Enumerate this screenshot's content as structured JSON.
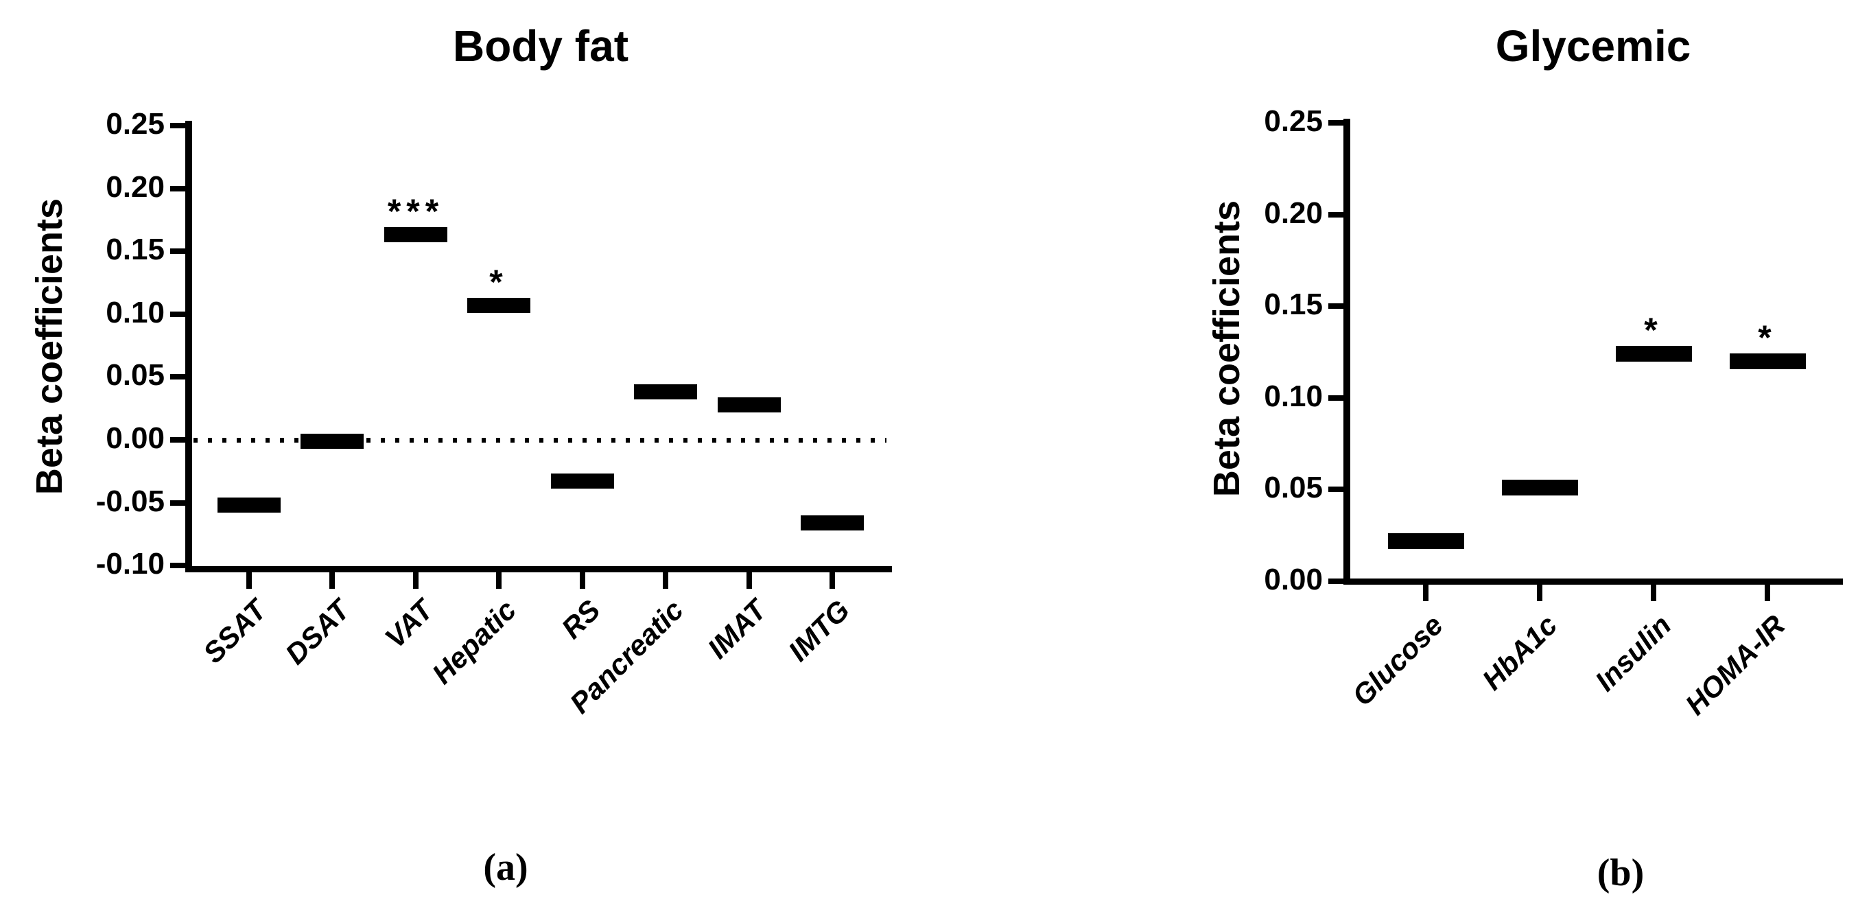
{
  "colors": {
    "foreground": "#000000",
    "background": "#ffffff"
  },
  "chart_data": [
    {
      "id": "a",
      "type": "bar",
      "title": "Body fat",
      "ylabel": "Beta coefficients",
      "xlabel": "",
      "caption": "(a)",
      "categories": [
        "SSAT",
        "DSAT",
        "VAT",
        "Hepatic",
        "RS",
        "Pancreatic",
        "IMAT",
        "IMTG"
      ],
      "values": [
        -0.052,
        -0.001,
        0.163,
        0.107,
        -0.033,
        0.038,
        0.028,
        -0.066
      ],
      "significance": [
        "",
        "",
        "***",
        "*",
        "",
        "",
        "",
        ""
      ],
      "ylim": [
        -0.1,
        0.25
      ],
      "ytick_step": 0.05,
      "ytick_labels": [
        "0.25",
        "0.20",
        "0.15",
        "0.10",
        "0.05",
        "0.00",
        "-0.05",
        "-0.10"
      ],
      "zero_line": true,
      "zero_line_style": "dotted",
      "marker_style": "horizontal-bar-dash",
      "layout_hints": {
        "legend": "none",
        "grid": false,
        "x_labels_rotated_45": true
      }
    },
    {
      "id": "b",
      "type": "bar",
      "title": "Glycemic",
      "ylabel": "Beta coefficients",
      "xlabel": "",
      "caption": "(b)",
      "categories": [
        "Glucose",
        "HbA1c",
        "Insulin",
        "HOMA-IR"
      ],
      "values": [
        0.022,
        0.051,
        0.124,
        0.12
      ],
      "significance": [
        "",
        "",
        "*",
        "*"
      ],
      "ylim": [
        0.0,
        0.25
      ],
      "ytick_step": 0.05,
      "ytick_labels": [
        "0.25",
        "0.20",
        "0.15",
        "0.10",
        "0.05",
        "0.00"
      ],
      "zero_line": false,
      "zero_line_style": "none",
      "marker_style": "horizontal-bar-dash",
      "layout_hints": {
        "legend": "none",
        "grid": false,
        "x_labels_rotated_45": true
      }
    }
  ]
}
